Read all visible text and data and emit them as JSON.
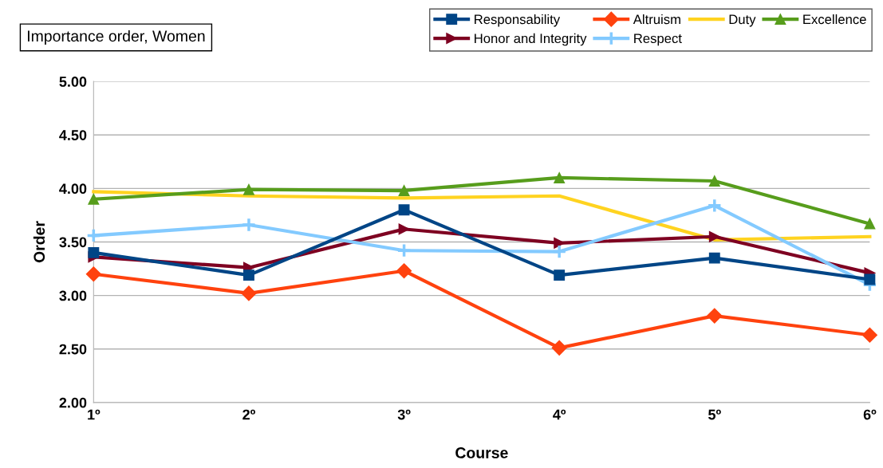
{
  "chart_data": {
    "type": "line",
    "title": "Importance order, Women",
    "xlabel": "Course",
    "ylabel": "Order",
    "categories": [
      "1º",
      "2º",
      "3º",
      "4º",
      "5º",
      "6º"
    ],
    "series": [
      {
        "name": "Responsability",
        "color": "#004586",
        "marker": "square",
        "values": [
          3.4,
          3.19,
          3.8,
          3.19,
          3.35,
          3.15
        ]
      },
      {
        "name": "Altruism",
        "color": "#ff420e",
        "marker": "diamond",
        "values": [
          3.2,
          3.02,
          3.23,
          2.51,
          2.81,
          2.63
        ]
      },
      {
        "name": "Duty",
        "color": "#ffd320",
        "marker": "none",
        "values": [
          3.97,
          3.93,
          3.91,
          3.93,
          3.52,
          3.55
        ]
      },
      {
        "name": "Excellence",
        "color": "#579d1c",
        "marker": "triangle",
        "values": [
          3.9,
          3.99,
          3.98,
          4.1,
          4.07,
          3.67
        ]
      },
      {
        "name": "Honor and Integrity",
        "color": "#7e0021",
        "marker": "triangle_right",
        "values": [
          3.36,
          3.26,
          3.62,
          3.49,
          3.55,
          3.21
        ]
      },
      {
        "name": "Respect",
        "color": "#83caff",
        "marker": "cross",
        "values": [
          3.56,
          3.66,
          3.42,
          3.41,
          3.84,
          3.1
        ]
      }
    ],
    "ylim": [
      2,
      5
    ],
    "yticks": [
      {
        "value": 2,
        "label": "2.00"
      },
      {
        "value": 2.5,
        "label": "2.50"
      },
      {
        "value": 3,
        "label": "3.00"
      },
      {
        "value": 3.5,
        "label": "3.50"
      },
      {
        "value": 4,
        "label": "4.00"
      },
      {
        "value": 4.5,
        "label": "4.50"
      },
      {
        "value": 5,
        "label": "5.00"
      }
    ],
    "grid": "y",
    "legend": "top right",
    "line_style": "solid"
  }
}
